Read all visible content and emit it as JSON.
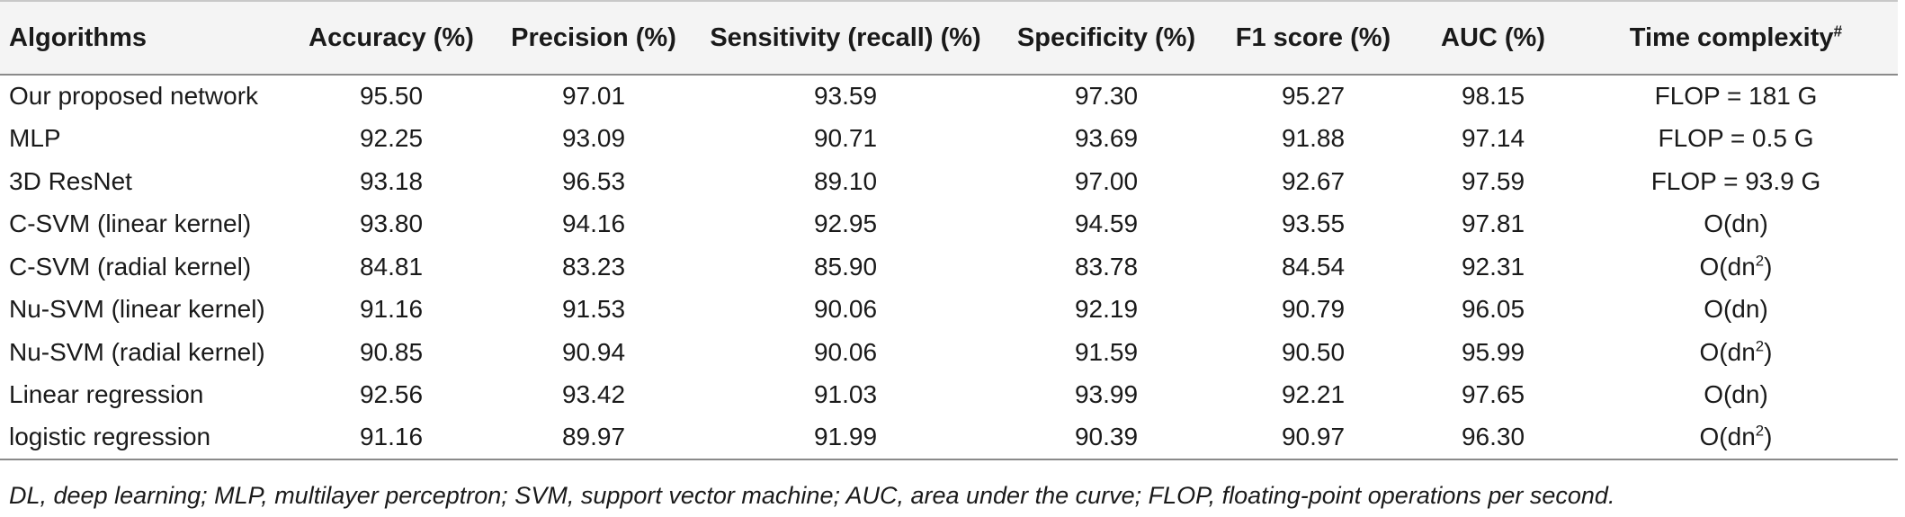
{
  "table": {
    "headers": [
      {
        "text": "Algorithms",
        "sup": ""
      },
      {
        "text": "Accuracy (%)",
        "sup": ""
      },
      {
        "text": "Precision (%)",
        "sup": ""
      },
      {
        "text": "Sensitivity (recall) (%)",
        "sup": ""
      },
      {
        "text": "Specificity (%)",
        "sup": ""
      },
      {
        "text": "F1 score (%)",
        "sup": ""
      },
      {
        "text": "AUC (%)",
        "sup": ""
      },
      {
        "text": "Time complexity",
        "sup": "#"
      }
    ],
    "rows": [
      {
        "cells": [
          "Our proposed network",
          "95.50",
          "97.01",
          "93.59",
          "97.30",
          "95.27",
          "98.15"
        ],
        "tc": "FLOP = 181 G",
        "tc_sup": ""
      },
      {
        "cells": [
          "MLP",
          "92.25",
          "93.09",
          "90.71",
          "93.69",
          "91.88",
          "97.14"
        ],
        "tc": "FLOP = 0.5 G",
        "tc_sup": ""
      },
      {
        "cells": [
          "3D ResNet",
          "93.18",
          "96.53",
          "89.10",
          "97.00",
          "92.67",
          "97.59"
        ],
        "tc": "FLOP = 93.9 G",
        "tc_sup": ""
      },
      {
        "cells": [
          "C-SVM (linear kernel)",
          "93.80",
          "94.16",
          "92.95",
          "94.59",
          "93.55",
          "97.81"
        ],
        "tc": "O(dn)",
        "tc_sup": ""
      },
      {
        "cells": [
          "C-SVM (radial kernel)",
          "84.81",
          "83.23",
          "85.90",
          "83.78",
          "84.54",
          "92.31"
        ],
        "tc": "O(dn",
        "tc_sup": "2",
        "tc_tail": ")"
      },
      {
        "cells": [
          "Nu-SVM (linear kernel)",
          "91.16",
          "91.53",
          "90.06",
          "92.19",
          "90.79",
          "96.05"
        ],
        "tc": "O(dn)",
        "tc_sup": ""
      },
      {
        "cells": [
          "Nu-SVM (radial kernel)",
          "90.85",
          "90.94",
          "90.06",
          "91.59",
          "90.50",
          "95.99"
        ],
        "tc": "O(dn",
        "tc_sup": "2",
        "tc_tail": ")"
      },
      {
        "cells": [
          "Linear regression",
          "92.56",
          "93.42",
          "91.03",
          "93.99",
          "92.21",
          "97.65"
        ],
        "tc": "O(dn)",
        "tc_sup": ""
      },
      {
        "cells": [
          "logistic regression",
          "91.16",
          "89.97",
          "91.99",
          "90.39",
          "90.97",
          "96.30"
        ],
        "tc": "O(dn",
        "tc_sup": "2",
        "tc_tail": ")"
      }
    ]
  },
  "footnote": "DL, deep learning; MLP, multilayer perceptron; SVM, support vector machine; AUC, area under the curve; FLOP, floating-point operations per second."
}
